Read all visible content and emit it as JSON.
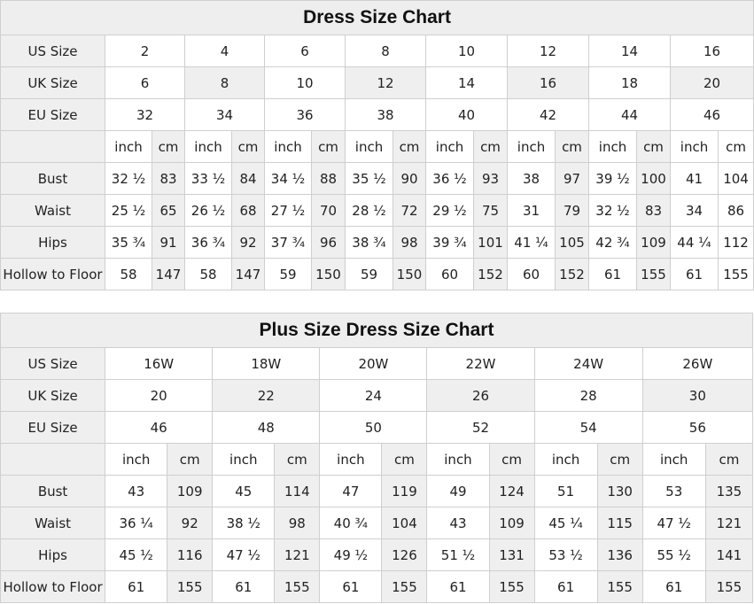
{
  "standard": {
    "title": "Dress Size Chart",
    "us_label": "US Size",
    "uk_label": "UK Size",
    "eu_label": "EU Size",
    "us": [
      "2",
      "4",
      "6",
      "8",
      "10",
      "12",
      "14",
      "16"
    ],
    "uk": [
      "6",
      "8",
      "10",
      "12",
      "14",
      "16",
      "18",
      "20"
    ],
    "eu": [
      "32",
      "34",
      "36",
      "38",
      "40",
      "42",
      "44",
      "46"
    ],
    "unit_inch": "inch",
    "unit_cm": "cm",
    "measurements": [
      {
        "label": "Bust",
        "values": [
          "32 ½",
          "83",
          "33 ½",
          "84",
          "34 ½",
          "88",
          "35 ½",
          "90",
          "36 ½",
          "93",
          "38",
          "97",
          "39 ½",
          "100",
          "41",
          "104"
        ]
      },
      {
        "label": "Waist",
        "values": [
          "25 ½",
          "65",
          "26 ½",
          "68",
          "27 ½",
          "70",
          "28 ½",
          "72",
          "29 ½",
          "75",
          "31",
          "79",
          "32 ½",
          "83",
          "34",
          "86"
        ]
      },
      {
        "label": "Hips",
        "values": [
          "35 ¾",
          "91",
          "36 ¾",
          "92",
          "37 ¾",
          "96",
          "38 ¾",
          "98",
          "39 ¾",
          "101",
          "41 ¼",
          "105",
          "42 ¾",
          "109",
          "44 ¼",
          "112"
        ]
      },
      {
        "label": "Hollow to Floor",
        "values": [
          "58",
          "147",
          "58",
          "147",
          "59",
          "150",
          "59",
          "150",
          "60",
          "152",
          "60",
          "152",
          "61",
          "155",
          "61",
          "155"
        ]
      }
    ]
  },
  "plus": {
    "title": "Plus Size Dress Size Chart",
    "us_label": "US Size",
    "uk_label": "UK Size",
    "eu_label": "EU Size",
    "us": [
      "16W",
      "18W",
      "20W",
      "22W",
      "24W",
      "26W"
    ],
    "uk": [
      "20",
      "22",
      "24",
      "26",
      "28",
      "30"
    ],
    "eu": [
      "46",
      "48",
      "50",
      "52",
      "54",
      "56"
    ],
    "unit_inch": "inch",
    "unit_cm": "cm",
    "measurements": [
      {
        "label": "Bust",
        "values": [
          "43",
          "109",
          "45",
          "114",
          "47",
          "119",
          "49",
          "124",
          "51",
          "130",
          "53",
          "135"
        ]
      },
      {
        "label": "Waist",
        "values": [
          "36 ¼",
          "92",
          "38 ½",
          "98",
          "40 ¾",
          "104",
          "43",
          "109",
          "45 ¼",
          "115",
          "47 ½",
          "121"
        ]
      },
      {
        "label": "Hips",
        "values": [
          "45 ½",
          "116",
          "47 ½",
          "121",
          "49 ½",
          "126",
          "51 ½",
          "131",
          "53 ½",
          "136",
          "55 ½",
          "141"
        ]
      },
      {
        "label": "Hollow to Floor",
        "values": [
          "61",
          "155",
          "61",
          "155",
          "61",
          "155",
          "61",
          "155",
          "61",
          "155",
          "61",
          "155"
        ]
      }
    ]
  }
}
